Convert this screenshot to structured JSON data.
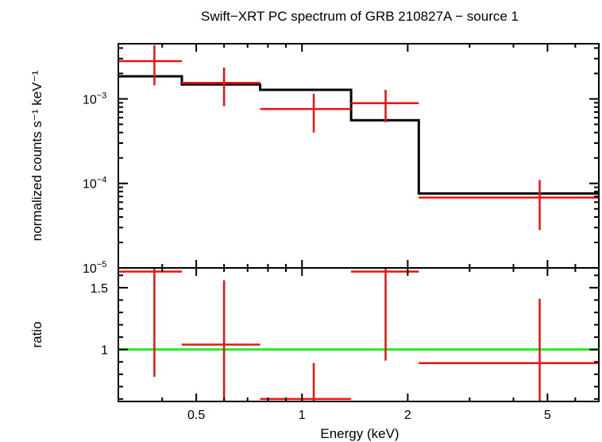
{
  "title": "Swift−XRT PC spectrum of GRB 210827A − source 1",
  "chart_data": [
    {
      "type": "scatter",
      "panel": "spectrum",
      "ylabel": "normalized counts s⁻¹ keV⁻¹",
      "yscale": "log",
      "xscale": "log",
      "xlim": [
        0.3,
        7.0
      ],
      "ylim": [
        1e-05,
        0.0045
      ],
      "y_tick_labels": [
        {
          "base": "10",
          "exp": "−3",
          "value": 0.001
        },
        {
          "base": "10",
          "exp": "−4",
          "value": 0.0001
        },
        {
          "base": "10",
          "exp": "−5",
          "value": 1e-05
        }
      ],
      "data_color": "#ee1111",
      "model_color": "#000000",
      "data": [
        {
          "x": 0.38,
          "xlo": 0.3,
          "xhi": 0.455,
          "y": 0.0028,
          "ylo": 0.00145,
          "yhi": 0.0043
        },
        {
          "x": 0.6,
          "xlo": 0.455,
          "xhi": 0.76,
          "y": 0.00155,
          "ylo": 0.00082,
          "yhi": 0.00235
        },
        {
          "x": 1.08,
          "xlo": 0.76,
          "xhi": 1.38,
          "y": 0.00076,
          "ylo": 0.0004,
          "yhi": 0.00115
        },
        {
          "x": 1.73,
          "xlo": 1.38,
          "xhi": 2.15,
          "y": 0.00089,
          "ylo": 0.00053,
          "yhi": 0.00128
        },
        {
          "x": 4.75,
          "xlo": 2.15,
          "xhi": 7.0,
          "y": 6.8e-05,
          "ylo": 2.8e-05,
          "yhi": 0.00011
        }
      ],
      "model": [
        {
          "xlo": 0.3,
          "xhi": 0.455,
          "y": 0.00185
        },
        {
          "xlo": 0.455,
          "xhi": 0.76,
          "y": 0.00148
        },
        {
          "xlo": 0.76,
          "xhi": 1.38,
          "y": 0.00128
        },
        {
          "xlo": 1.38,
          "xhi": 2.15,
          "y": 0.00056
        },
        {
          "xlo": 2.15,
          "xhi": 7.0,
          "y": 7.6e-05
        }
      ]
    },
    {
      "type": "scatter",
      "panel": "ratio",
      "xlabel": "Energy (keV)",
      "ylabel": "ratio",
      "xscale": "log",
      "xlim": [
        0.3,
        7.0
      ],
      "ylim": [
        0.58,
        1.66
      ],
      "x_ticks": [
        "0.5",
        "1",
        "2",
        "5"
      ],
      "x_tick_values": [
        0.5,
        1,
        2,
        5
      ],
      "y_ticks": [
        "1",
        "1.5"
      ],
      "y_tick_values": [
        1,
        1.5
      ],
      "reference_line": {
        "y": 1.0,
        "color": "#22ee22"
      },
      "data_color": "#ee1111",
      "data": [
        {
          "x": 0.38,
          "xlo": 0.3,
          "xhi": 0.455,
          "y": 1.63,
          "ylo": 0.78,
          "yhi": 1.66
        },
        {
          "x": 0.6,
          "xlo": 0.455,
          "xhi": 0.76,
          "y": 1.04,
          "ylo": 0.58,
          "yhi": 1.56
        },
        {
          "x": 1.08,
          "xlo": 0.76,
          "xhi": 1.38,
          "y": 0.6,
          "ylo": 0.58,
          "yhi": 0.89
        },
        {
          "x": 1.73,
          "xlo": 1.38,
          "xhi": 2.15,
          "y": 1.63,
          "ylo": 0.91,
          "yhi": 1.66
        },
        {
          "x": 4.75,
          "xlo": 2.15,
          "xhi": 7.0,
          "y": 0.89,
          "ylo": 0.58,
          "yhi": 1.41
        }
      ]
    }
  ]
}
